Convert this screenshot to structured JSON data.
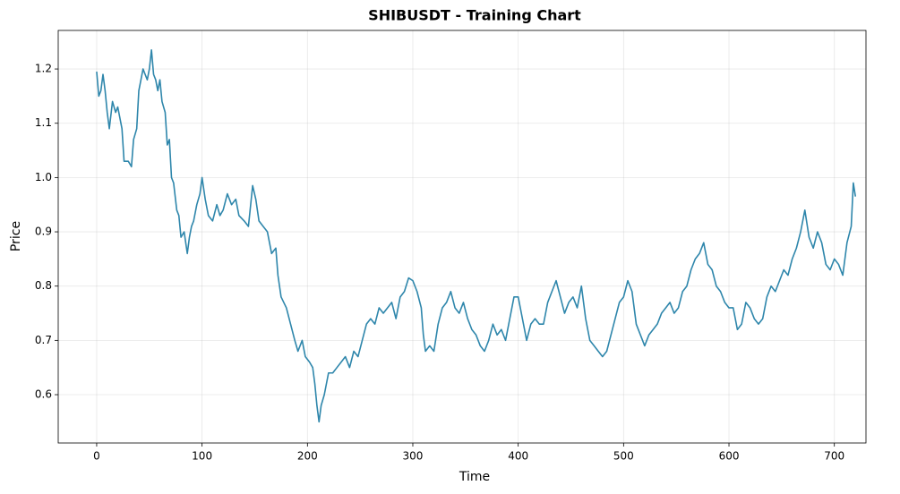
{
  "chart_data": {
    "type": "line",
    "title": "SHIBUSDT - Training Chart",
    "x_label": "Time",
    "y_label": "Price",
    "color": "#2e86ab",
    "grid": true,
    "xlim": [
      -36.5,
      730
    ],
    "ylim": [
      0.511,
      1.271
    ],
    "xticks": [
      0,
      100,
      200,
      300,
      400,
      500,
      600,
      700
    ],
    "yticks": [
      0.6,
      0.7,
      0.8,
      0.9,
      {
        "value": 1,
        "label": "1.0"
      },
      1.1,
      1.2
    ],
    "x": [
      0,
      2,
      4,
      6,
      8,
      10,
      12,
      15,
      18,
      20,
      24,
      26,
      30,
      33,
      35,
      38,
      40,
      42,
      44,
      46,
      48,
      50,
      52,
      54,
      56,
      58,
      60,
      62,
      65,
      67,
      69,
      71,
      73,
      76,
      78,
      80,
      83,
      86,
      88,
      90,
      92,
      95,
      98,
      100,
      103,
      106,
      110,
      114,
      117,
      120,
      124,
      128,
      132,
      135,
      140,
      144,
      148,
      151,
      154,
      158,
      162,
      166,
      170,
      172,
      175,
      180,
      184,
      188,
      191,
      195,
      198,
      202,
      205,
      207,
      209,
      211,
      213,
      216,
      220,
      224,
      228,
      232,
      236,
      240,
      244,
      248,
      252,
      256,
      260,
      264,
      268,
      272,
      276,
      280,
      284,
      288,
      292,
      296,
      300,
      304,
      308,
      310,
      312,
      316,
      320,
      324,
      328,
      332,
      336,
      340,
      344,
      348,
      352,
      356,
      360,
      364,
      368,
      372,
      376,
      380,
      384,
      388,
      392,
      396,
      400,
      404,
      408,
      412,
      416,
      420,
      424,
      428,
      432,
      436,
      440,
      444,
      448,
      452,
      456,
      460,
      464,
      468,
      472,
      476,
      480,
      484,
      488,
      492,
      496,
      500,
      504,
      508,
      512,
      516,
      520,
      524,
      528,
      532,
      536,
      540,
      544,
      548,
      552,
      556,
      560,
      564,
      568,
      572,
      576,
      580,
      584,
      588,
      592,
      596,
      600,
      604,
      608,
      612,
      616,
      620,
      624,
      628,
      632,
      636,
      640,
      644,
      648,
      652,
      656,
      660,
      664,
      668,
      672,
      676,
      680,
      684,
      688,
      692,
      696,
      700,
      704,
      708,
      712,
      716,
      718,
      720
    ],
    "values": [
      1.195,
      1.15,
      1.16,
      1.19,
      1.16,
      1.12,
      1.09,
      1.14,
      1.12,
      1.13,
      1.09,
      1.03,
      1.03,
      1.02,
      1.07,
      1.09,
      1.16,
      1.18,
      1.2,
      1.19,
      1.18,
      1.2,
      1.235,
      1.19,
      1.18,
      1.16,
      1.18,
      1.14,
      1.12,
      1.06,
      1.07,
      1.0,
      0.99,
      0.94,
      0.93,
      0.89,
      0.9,
      0.86,
      0.89,
      0.91,
      0.92,
      0.95,
      0.97,
      1.0,
      0.96,
      0.93,
      0.92,
      0.95,
      0.93,
      0.94,
      0.97,
      0.95,
      0.96,
      0.93,
      0.92,
      0.91,
      0.985,
      0.96,
      0.92,
      0.91,
      0.9,
      0.86,
      0.87,
      0.82,
      0.78,
      0.76,
      0.73,
      0.7,
      0.68,
      0.7,
      0.67,
      0.66,
      0.65,
      0.62,
      0.58,
      0.55,
      0.58,
      0.6,
      0.64,
      0.64,
      0.65,
      0.66,
      0.67,
      0.65,
      0.68,
      0.67,
      0.7,
      0.73,
      0.74,
      0.73,
      0.76,
      0.75,
      0.76,
      0.77,
      0.74,
      0.78,
      0.79,
      0.815,
      0.81,
      0.79,
      0.76,
      0.71,
      0.68,
      0.69,
      0.68,
      0.73,
      0.76,
      0.77,
      0.79,
      0.76,
      0.75,
      0.77,
      0.74,
      0.72,
      0.71,
      0.69,
      0.68,
      0.7,
      0.73,
      0.71,
      0.72,
      0.7,
      0.74,
      0.78,
      0.78,
      0.74,
      0.7,
      0.73,
      0.74,
      0.73,
      0.73,
      0.77,
      0.79,
      0.81,
      0.78,
      0.75,
      0.77,
      0.78,
      0.76,
      0.8,
      0.74,
      0.7,
      0.69,
      0.68,
      0.67,
      0.68,
      0.71,
      0.74,
      0.77,
      0.78,
      0.81,
      0.79,
      0.73,
      0.71,
      0.69,
      0.71,
      0.72,
      0.73,
      0.75,
      0.76,
      0.77,
      0.75,
      0.76,
      0.79,
      0.8,
      0.83,
      0.85,
      0.86,
      0.88,
      0.84,
      0.83,
      0.8,
      0.79,
      0.77,
      0.76,
      0.76,
      0.72,
      0.73,
      0.77,
      0.76,
      0.74,
      0.73,
      0.74,
      0.78,
      0.8,
      0.79,
      0.81,
      0.83,
      0.82,
      0.85,
      0.87,
      0.9,
      0.94,
      0.89,
      0.87,
      0.9,
      0.88,
      0.84,
      0.83,
      0.85,
      0.84,
      0.82,
      0.88,
      0.91,
      0.99,
      0.965
    ]
  }
}
